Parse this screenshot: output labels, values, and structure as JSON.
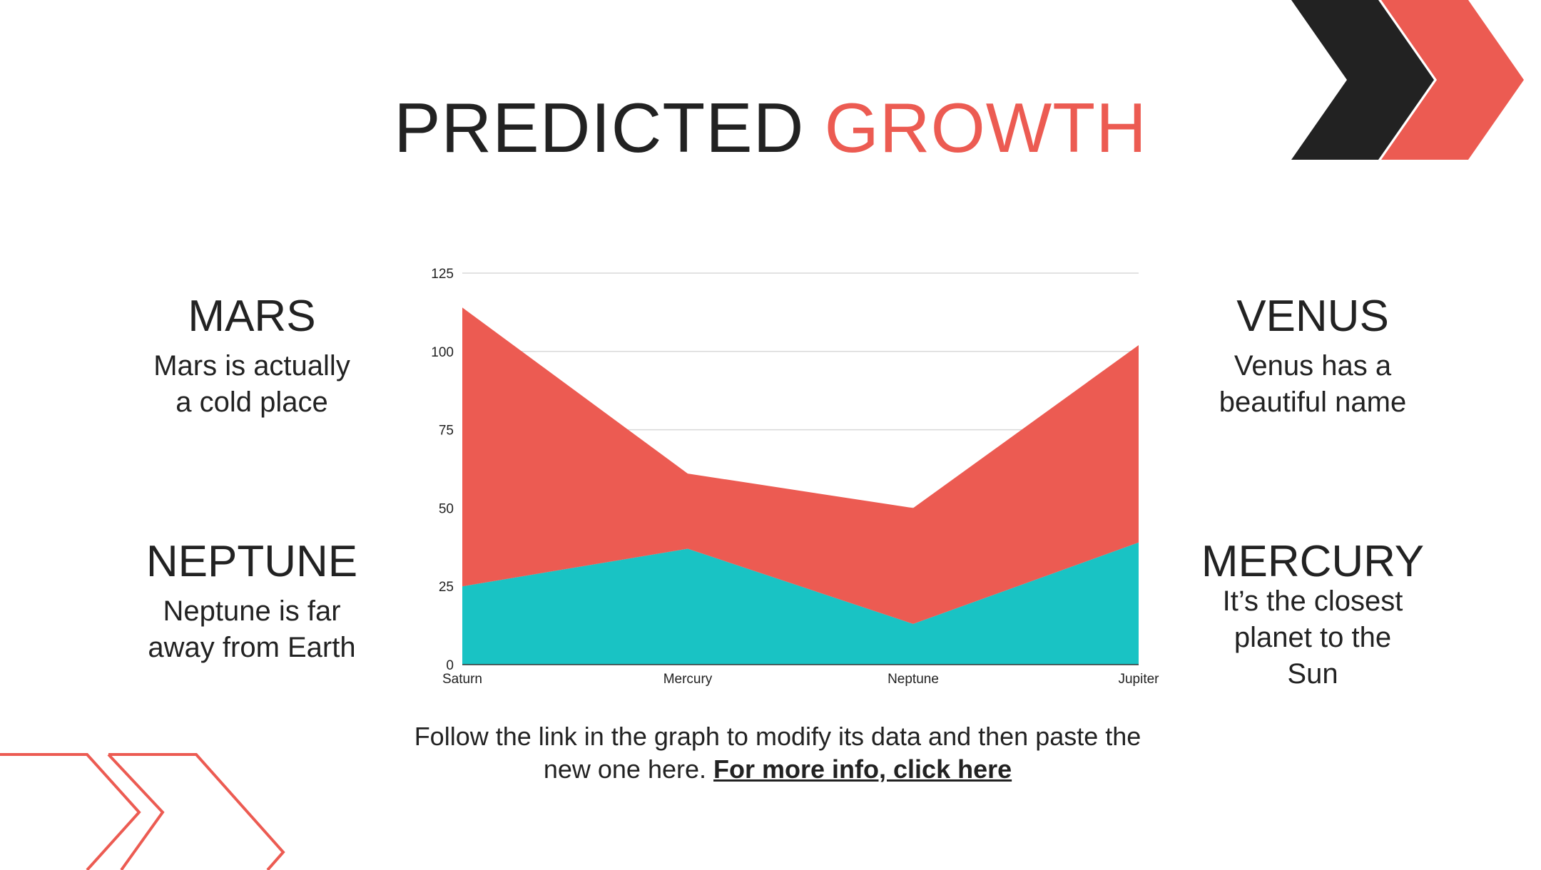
{
  "title": {
    "part1": "PREDICTED",
    "part2": "GROWTH"
  },
  "colors": {
    "accent": "#ec5b52",
    "dark": "#222222",
    "teal": "#19c3c4",
    "grid": "#d9d9d9"
  },
  "blocks": {
    "mars": {
      "heading": "MARS",
      "line1": "Mars is actually",
      "line2": "a cold place"
    },
    "neptune": {
      "heading": "NEPTUNE",
      "line1": "Neptune is far",
      "line2": "away from Earth"
    },
    "venus": {
      "heading": "VENUS",
      "line1": "Venus has a",
      "line2": "beautiful name"
    },
    "mercury": {
      "heading": "MERCURY",
      "line1": "It’s the closest",
      "line2": "planet to the",
      "line3": "Sun"
    }
  },
  "footer": {
    "line1": "Follow the link in the graph to modify its data and then paste the",
    "line2": "new one here.",
    "link": "For more info, click here"
  },
  "chart_data": {
    "type": "area",
    "stacked": true,
    "categories": [
      "Saturn",
      "Mercury",
      "Neptune",
      "Jupiter"
    ],
    "series": [
      {
        "values": [
          25,
          37,
          13,
          39
        ],
        "color": "#19c3c4"
      },
      {
        "values": [
          89,
          24,
          37,
          63
        ],
        "color": "#ec5b52"
      }
    ],
    "ylim": [
      0,
      125
    ],
    "yticks": [
      0,
      25,
      50,
      75,
      100,
      125
    ],
    "grid": true,
    "legend": "none"
  }
}
